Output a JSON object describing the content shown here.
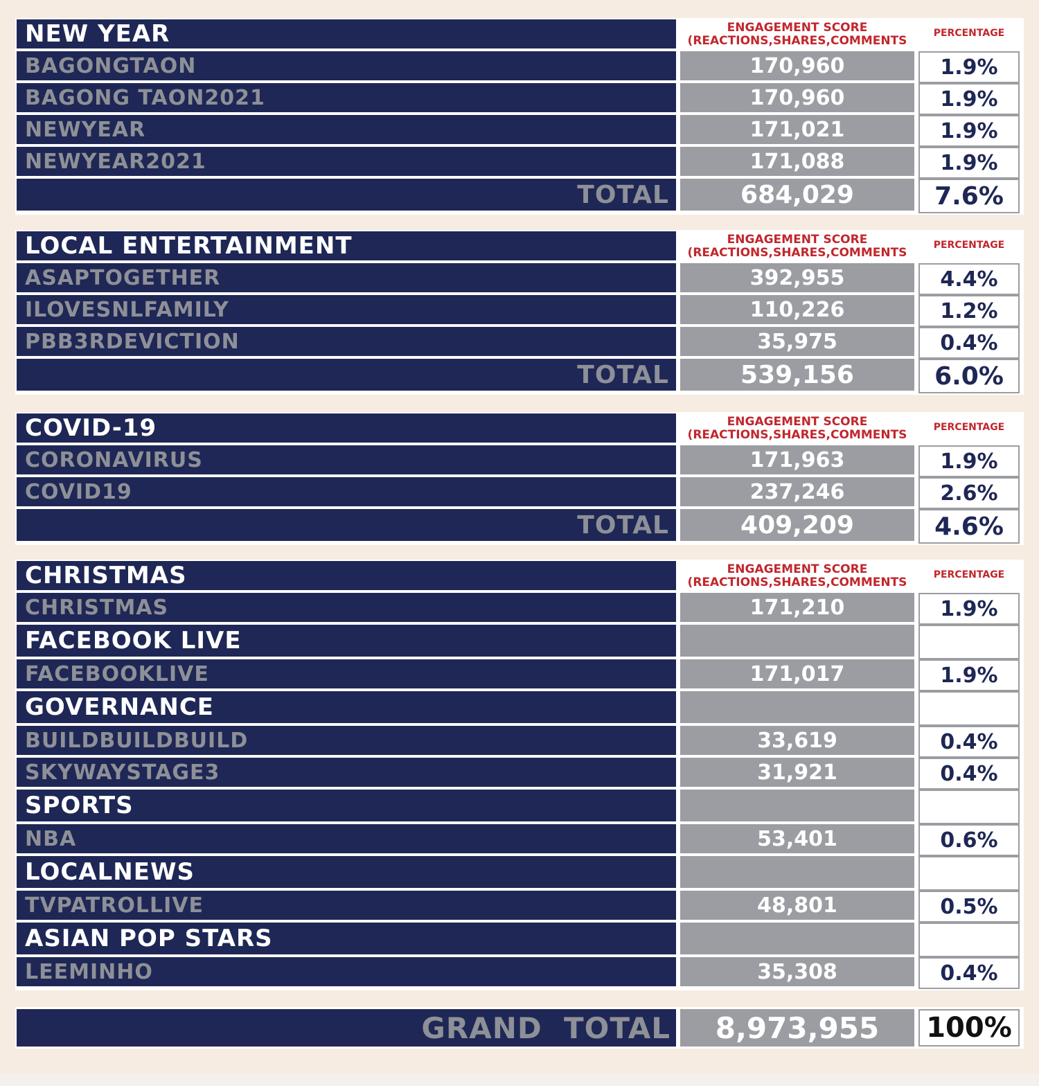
{
  "headers": {
    "score_line1": "ENGAGEMENT SCORE",
    "score_line2": "(REACTIONS,SHARES,COMMENTS",
    "percentage": "PERCENTAGE"
  },
  "total_label": "TOTAL",
  "new_year": {
    "title": "NEW YEAR",
    "rows": [
      {
        "name": "BAGONGTAON",
        "score": "170,960",
        "pct": "1.9%"
      },
      {
        "name": "BAGONG TAON2021",
        "score": "170,960",
        "pct": "1.9%"
      },
      {
        "name": "NEWYEAR",
        "score": "171,021",
        "pct": "1.9%"
      },
      {
        "name": "NEWYEAR2021",
        "score": "171,088",
        "pct": "1.9%"
      }
    ],
    "total_score": "684,029",
    "total_pct": "7.6%"
  },
  "local_entertainment": {
    "title": "LOCAL ENTERTAINMENT",
    "rows": [
      {
        "name": "ASAPTOGETHER",
        "score": "392,955",
        "pct": "4.4%"
      },
      {
        "name": "ILOVESNLFAMILY",
        "score": "110,226",
        "pct": "1.2%"
      },
      {
        "name": "PBB3RDEVICTION",
        "score": "35,975",
        "pct": "0.4%"
      }
    ],
    "total_score": "539,156",
    "total_pct": "6.0%"
  },
  "covid": {
    "title": "COVID-19",
    "rows": [
      {
        "name": "CORONAVIRUS",
        "score": "171,963",
        "pct": "1.9%"
      },
      {
        "name": "COVID19",
        "score": "237,246",
        "pct": "2.6%"
      }
    ],
    "total_score": "409,209",
    "total_pct": "4.6%"
  },
  "misc": {
    "christmas_title": "CHRISTMAS",
    "christmas": {
      "name": "CHRISTMAS",
      "score": "171,210",
      "pct": "1.9%"
    },
    "facebook_title": "FACEBOOK LIVE",
    "facebook": {
      "name": "FACEBOOKLIVE",
      "score": "171,017",
      "pct": "1.9%"
    },
    "governance_title": "GOVERNANCE",
    "build": {
      "name": "BUILDBUILDBUILD",
      "score": "33,619",
      "pct": "0.4%"
    },
    "skyway": {
      "name": "SKYWAYSTAGE3",
      "score": "31,921",
      "pct": "0.4%"
    },
    "sports_title": "SPORTS",
    "nba": {
      "name": "NBA",
      "score": "53,401",
      "pct": "0.6%"
    },
    "localnews_title": "LOCALNEWS",
    "tvpatrol": {
      "name": "TVPATROLLIVE",
      "score": "48,801",
      "pct": "0.5%"
    },
    "asianpop_title": "ASIAN POP STARS",
    "leeminho": {
      "name": "LEEMINHO",
      "score": "35,308",
      "pct": "0.4%"
    }
  },
  "grand_total": {
    "label": "GRAND  TOTAL",
    "score": "8,973,955",
    "pct": "100%"
  },
  "colors": {
    "navy": "#1e2755",
    "gray": "#9b9da2",
    "red": "#c1272d",
    "background": "#f6ece1"
  }
}
